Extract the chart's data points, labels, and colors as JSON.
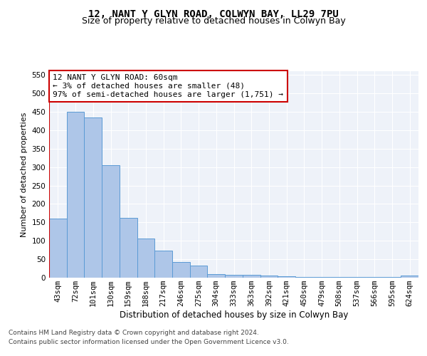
{
  "title1": "12, NANT Y GLYN ROAD, COLWYN BAY, LL29 7PU",
  "title2": "Size of property relative to detached houses in Colwyn Bay",
  "xlabel": "Distribution of detached houses by size in Colwyn Bay",
  "ylabel": "Number of detached properties",
  "categories": [
    "43sqm",
    "72sqm",
    "101sqm",
    "130sqm",
    "159sqm",
    "188sqm",
    "217sqm",
    "246sqm",
    "275sqm",
    "304sqm",
    "333sqm",
    "363sqm",
    "392sqm",
    "421sqm",
    "450sqm",
    "479sqm",
    "508sqm",
    "537sqm",
    "566sqm",
    "595sqm",
    "624sqm"
  ],
  "values": [
    160,
    450,
    435,
    305,
    163,
    106,
    73,
    43,
    32,
    10,
    8,
    8,
    5,
    3,
    2,
    1,
    1,
    1,
    1,
    1,
    5
  ],
  "bar_color": "#aec6e8",
  "bar_edge_color": "#5b9bd5",
  "highlight_line_color": "#cc0000",
  "ylim": [
    0,
    560
  ],
  "yticks": [
    0,
    50,
    100,
    150,
    200,
    250,
    300,
    350,
    400,
    450,
    500,
    550
  ],
  "annotation_text": "12 NANT Y GLYN ROAD: 60sqm\n← 3% of detached houses are smaller (48)\n97% of semi-detached houses are larger (1,751) →",
  "annotation_box_color": "#ffffff",
  "annotation_box_edge": "#cc0000",
  "footer1": "Contains HM Land Registry data © Crown copyright and database right 2024.",
  "footer2": "Contains public sector information licensed under the Open Government Licence v3.0.",
  "bg_color": "#eef2f9",
  "title1_fontsize": 10,
  "title2_fontsize": 9,
  "xlabel_fontsize": 8.5,
  "ylabel_fontsize": 8,
  "tick_fontsize": 7.5,
  "annotation_fontsize": 8,
  "footer_fontsize": 6.5
}
